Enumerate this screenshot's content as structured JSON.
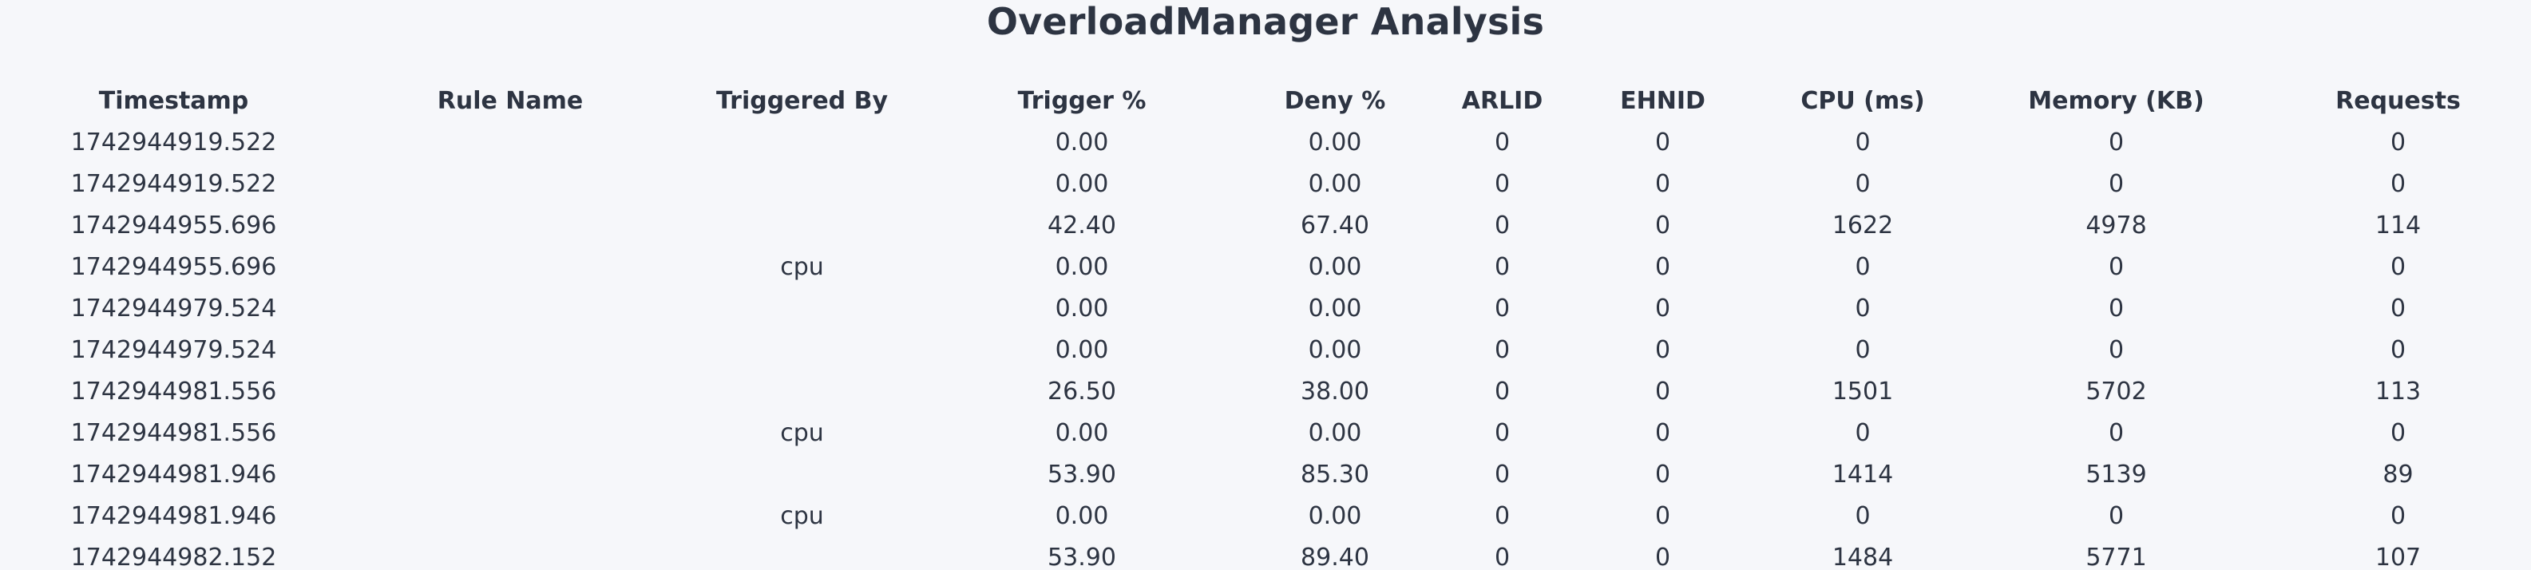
{
  "page": {
    "title": "OverloadManager Analysis"
  },
  "table": {
    "columns": [
      "Timestamp",
      "Rule Name",
      "Triggered By",
      "Trigger %",
      "Deny %",
      "ARLID",
      "EHNID",
      "CPU (ms)",
      "Memory (KB)",
      "Requests"
    ],
    "rows": [
      [
        "1742944919.522",
        "",
        "",
        "0.00",
        "0.00",
        "0",
        "0",
        "0",
        "0",
        "0"
      ],
      [
        "1742944919.522",
        "",
        "",
        "0.00",
        "0.00",
        "0",
        "0",
        "0",
        "0",
        "0"
      ],
      [
        "1742944955.696",
        "",
        "",
        "42.40",
        "67.40",
        "0",
        "0",
        "1622",
        "4978",
        "114"
      ],
      [
        "1742944955.696",
        "",
        "cpu",
        "0.00",
        "0.00",
        "0",
        "0",
        "0",
        "0",
        "0"
      ],
      [
        "1742944979.524",
        "",
        "",
        "0.00",
        "0.00",
        "0",
        "0",
        "0",
        "0",
        "0"
      ],
      [
        "1742944979.524",
        "",
        "",
        "0.00",
        "0.00",
        "0",
        "0",
        "0",
        "0",
        "0"
      ],
      [
        "1742944981.556",
        "",
        "",
        "26.50",
        "38.00",
        "0",
        "0",
        "1501",
        "5702",
        "113"
      ],
      [
        "1742944981.556",
        "",
        "cpu",
        "0.00",
        "0.00",
        "0",
        "0",
        "0",
        "0",
        "0"
      ],
      [
        "1742944981.946",
        "",
        "",
        "53.90",
        "85.30",
        "0",
        "0",
        "1414",
        "5139",
        "89"
      ],
      [
        "1742944981.946",
        "",
        "cpu",
        "0.00",
        "0.00",
        "0",
        "0",
        "0",
        "0",
        "0"
      ],
      [
        "1742944982.152",
        "",
        "",
        "53.90",
        "89.40",
        "0",
        "0",
        "1484",
        "5771",
        "107"
      ]
    ]
  }
}
